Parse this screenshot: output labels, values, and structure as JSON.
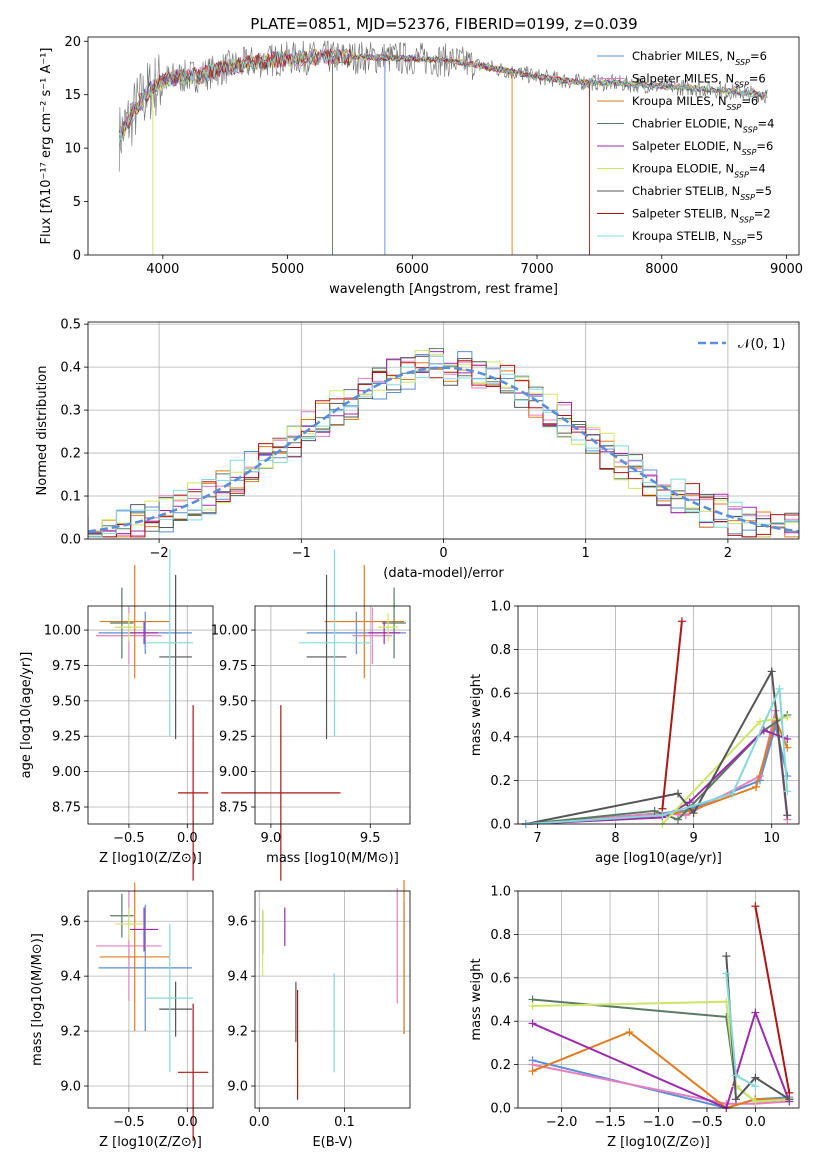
{
  "figure_title": "PLATE=0851, MJD=52376, FIBERID=0199, z=0.039",
  "models": [
    {
      "name": "Chabrier MILES",
      "nssp": "6",
      "color": "#5b8ed8"
    },
    {
      "name": "Salpeter MILES",
      "nssp": "6",
      "color": "#e67fbf"
    },
    {
      "name": "Kroupa MILES",
      "nssp": "6",
      "color": "#e07b1f"
    },
    {
      "name": "Chabrier ELODIE",
      "nssp": "4",
      "color": "#5a7a64"
    },
    {
      "name": "Salpeter ELODIE",
      "nssp": "6",
      "color": "#9b2dab"
    },
    {
      "name": "Kroupa ELODIE",
      "nssp": "4",
      "color": "#cde66a"
    },
    {
      "name": "Chabrier STELIB",
      "nssp": "5",
      "color": "#555555"
    },
    {
      "name": "Salpeter STELIB",
      "nssp": "2",
      "color": "#b01515"
    },
    {
      "name": "Kroupa STELIB",
      "nssp": "5",
      "color": "#84d9d8"
    }
  ],
  "chart_data": [
    {
      "id": "spectrum",
      "type": "line",
      "xlabel": "wavelength [Angstrom, rest frame]",
      "ylabel": "Flux [fλ10⁻¹⁷ erg cm⁻² s⁻¹ A⁻¹]",
      "xlim": [
        3400,
        9100
      ],
      "ylim": [
        0,
        20.4
      ],
      "xticks": [
        4000,
        5000,
        6000,
        7000,
        8000,
        9000
      ],
      "yticks": [
        0,
        5,
        10,
        15,
        20
      ],
      "grid": false,
      "legend": "right",
      "continuum": {
        "x": [
          3650,
          3700,
          3800,
          3900,
          4000,
          4100,
          4300,
          4500,
          4700,
          5000,
          5300,
          5600,
          6000,
          6300,
          6600,
          7000,
          7300,
          7600,
          8000,
          8400,
          8800
        ],
        "y": [
          11,
          12,
          14,
          15.5,
          16.3,
          16.6,
          16.8,
          17.5,
          18,
          18.4,
          18.5,
          18.5,
          18.4,
          18.2,
          17.6,
          16.7,
          16.2,
          16.1,
          15.8,
          15.5,
          15.0
        ]
      }
    },
    {
      "id": "residuals",
      "type": "line",
      "xlabel": "(data-model)/error",
      "ylabel": "Normed distribution",
      "xlim": [
        -2.5,
        2.5
      ],
      "ylim": [
        0,
        0.505
      ],
      "xticks": [
        -2,
        -1,
        0,
        1,
        2
      ],
      "yticks": [
        0,
        0.1,
        0.2,
        0.3,
        0.4,
        0.5
      ],
      "grid": true,
      "legend": "top-right",
      "series": [
        {
          "name": "𝒩(0, 1)",
          "mean": 0,
          "sigma": 1,
          "color": "#5b8ed8",
          "style": "dashed"
        }
      ]
    },
    {
      "id": "age_vs_Z",
      "type": "scatter",
      "xlabel": "Z [log10(Z/Z⊙)]",
      "ylabel": "age [log10(age/yr)]",
      "xlim": [
        -0.85,
        0.22
      ],
      "ylim": [
        8.63,
        10.17
      ],
      "xticks": [
        -0.5,
        0.0
      ],
      "yticks": [
        8.75,
        9.0,
        9.25,
        9.5,
        9.75,
        10.0
      ],
      "grid": true,
      "points": [
        {
          "x": -0.36,
          "xerr": 0.4,
          "y": 9.98,
          "yerr": 0.15
        },
        {
          "x": -0.5,
          "xerr": 0.28,
          "y": 9.96,
          "yerr": 0.2
        },
        {
          "x": -0.45,
          "xerr": 0.3,
          "y": 10.06,
          "yerr": 0.4
        },
        {
          "x": -0.56,
          "xerr": 0.1,
          "y": 10.05,
          "yerr": 0.25
        },
        {
          "x": -0.37,
          "xerr": 0.12,
          "y": 9.98,
          "yerr": 0.08
        },
        {
          "x": -0.5,
          "xerr": 0.12,
          "y": 10.02,
          "yerr": 0.1
        },
        {
          "x": -0.1,
          "xerr": 0.14,
          "y": 9.81,
          "yerr": 0.58
        },
        {
          "x": 0.05,
          "xerr": 0.13,
          "y": 8.85,
          "yerr": 0.62
        },
        {
          "x": -0.15,
          "xerr": 0.2,
          "y": 9.91,
          "yerr": 0.66
        }
      ]
    },
    {
      "id": "age_vs_mass",
      "type": "scatter",
      "xlabel": "mass [log10(M/M⊙)]",
      "ylabel": "",
      "xlim": [
        8.92,
        9.7
      ],
      "ylim": [
        8.63,
        10.17
      ],
      "xticks": [
        9.0,
        9.5
      ],
      "yticks": [
        8.75,
        9.0,
        9.25,
        9.5,
        9.75,
        10.0
      ],
      "grid": true,
      "points": [
        {
          "x": 9.43,
          "xerr": 0.25,
          "y": 9.98,
          "yerr": 0.15
        },
        {
          "x": 9.51,
          "xerr": 0.1,
          "y": 9.96,
          "yerr": 0.2
        },
        {
          "x": 9.47,
          "xerr": 0.2,
          "y": 10.06,
          "yerr": 0.4
        },
        {
          "x": 9.62,
          "xerr": 0.06,
          "y": 10.05,
          "yerr": 0.25
        },
        {
          "x": 9.57,
          "xerr": 0.08,
          "y": 9.98,
          "yerr": 0.08
        },
        {
          "x": 9.59,
          "xerr": 0.05,
          "y": 10.02,
          "yerr": 0.1
        },
        {
          "x": 9.28,
          "xerr": 0.1,
          "y": 9.81,
          "yerr": 0.58
        },
        {
          "x": 9.05,
          "xerr": 0.3,
          "y": 8.85,
          "yerr": 0.62
        },
        {
          "x": 9.32,
          "xerr": 0.18,
          "y": 9.91,
          "yerr": 0.66
        }
      ]
    },
    {
      "id": "weight_vs_age",
      "type": "line",
      "xlabel": "age [log10(age/yr)]",
      "ylabel": "mass weight",
      "xlim": [
        6.75,
        10.35
      ],
      "ylim": [
        0,
        1.0
      ],
      "xticks": [
        7,
        8,
        9,
        10
      ],
      "yticks": [
        0.0,
        0.2,
        0.4,
        0.6,
        0.8,
        1.0
      ],
      "grid": true,
      "series": [
        {
          "x": [
            6.85,
            8.6,
            8.9,
            9.85,
            10.05,
            10.2
          ],
          "y": [
            0,
            0.05,
            0.06,
            0.2,
            0.45,
            0.22
          ]
        },
        {
          "x": [
            6.85,
            8.6,
            8.9,
            9.85,
            10.05,
            10.2
          ],
          "y": [
            0,
            0.05,
            0.04,
            0.22,
            0.52,
            0.02
          ]
        },
        {
          "x": [
            6.85,
            8.6,
            8.95,
            9.8,
            10.05,
            10.2
          ],
          "y": [
            0,
            0.04,
            0.06,
            0.17,
            0.48,
            0.35
          ]
        },
        {
          "x": [
            6.85,
            8.5,
            8.8,
            9.9,
            10.2
          ],
          "y": [
            0,
            0.06,
            0.02,
            0.43,
            0.5
          ]
        },
        {
          "x": [
            6.85,
            8.6,
            8.95,
            9.9,
            10.2
          ],
          "y": [
            0,
            0.03,
            0.1,
            0.43,
            0.39
          ]
        },
        {
          "x": [
            8.6,
            9.85,
            10.2
          ],
          "y": [
            0,
            0.47,
            0.49
          ]
        },
        {
          "x": [
            6.85,
            8.8,
            9.0,
            10.0,
            10.2
          ],
          "y": [
            0,
            0.14,
            0.05,
            0.7,
            0.04
          ]
        },
        {
          "x": [
            8.6,
            8.85
          ],
          "y": [
            0.07,
            0.93
          ]
        },
        {
          "x": [
            6.85,
            8.6,
            9.5,
            10.1,
            10.2
          ],
          "y": [
            0,
            0.04,
            0.14,
            0.62,
            0.15
          ]
        }
      ]
    },
    {
      "id": "mass_vs_Z",
      "type": "scatter",
      "xlabel": "Z [log10(Z/Z⊙)]",
      "ylabel": "mass [log10(M/M⊙)]",
      "xlim": [
        -0.85,
        0.22
      ],
      "ylim": [
        8.92,
        9.71
      ],
      "xticks": [
        -0.5,
        0.0
      ],
      "yticks": [
        9.0,
        9.2,
        9.4,
        9.6
      ],
      "grid": true,
      "points": [
        {
          "x": -0.36,
          "xerr": 0.4,
          "y": 9.43,
          "yerr": 0.23
        },
        {
          "x": -0.5,
          "xerr": 0.28,
          "y": 9.51,
          "yerr": 0.2
        },
        {
          "x": -0.45,
          "xerr": 0.3,
          "y": 9.47,
          "yerr": 0.27
        },
        {
          "x": -0.56,
          "xerr": 0.1,
          "y": 9.62,
          "yerr": 0.08
        },
        {
          "x": -0.37,
          "xerr": 0.12,
          "y": 9.57,
          "yerr": 0.08
        },
        {
          "x": -0.5,
          "xerr": 0.12,
          "y": 9.59,
          "yerr": 0.06
        },
        {
          "x": -0.1,
          "xerr": 0.14,
          "y": 9.28,
          "yerr": 0.1
        },
        {
          "x": 0.05,
          "xerr": 0.13,
          "y": 9.05,
          "yerr": 0.25
        },
        {
          "x": -0.15,
          "xerr": 0.2,
          "y": 9.32,
          "yerr": 0.27
        }
      ]
    },
    {
      "id": "mass_vs_ebv",
      "type": "scatter",
      "xlabel": "E(B-V)",
      "ylabel": "",
      "xlim": [
        -0.005,
        0.177
      ],
      "ylim": [
        8.92,
        9.71
      ],
      "xticks": [
        0.0,
        0.1
      ],
      "yticks": [
        9.0,
        9.2,
        9.4,
        9.6
      ],
      "grid": true,
      "points": [
        {
          "x": 0.17,
          "xerr": 0,
          "y": 9.43,
          "yerr": 0.24
        },
        {
          "x": 0.162,
          "xerr": 0,
          "y": 9.51,
          "yerr": 0.21
        },
        {
          "x": 0.17,
          "xerr": 0,
          "y": 9.47,
          "yerr": 0.28
        },
        {
          "x": 0.004,
          "xerr": 0,
          "y": 9.56,
          "yerr": 0.08
        },
        {
          "x": 0.03,
          "xerr": 0,
          "y": 9.58,
          "yerr": 0.07
        },
        {
          "x": 0.004,
          "xerr": 0,
          "y": 9.52,
          "yerr": 0.12
        },
        {
          "x": 0.043,
          "xerr": 0,
          "y": 9.27,
          "yerr": 0.11
        },
        {
          "x": 0.045,
          "xerr": 0,
          "y": 9.15,
          "yerr": 0.2
        },
        {
          "x": 0.088,
          "xerr": 0,
          "y": 9.23,
          "yerr": 0.18
        }
      ]
    },
    {
      "id": "weight_vs_Z",
      "type": "line",
      "xlabel": "Z [log10(Z/Z⊙)]",
      "ylabel": "mass weight",
      "xlim": [
        -2.45,
        0.45
      ],
      "ylim": [
        0,
        1.0
      ],
      "xticks": [
        -2.0,
        -1.5,
        -1.0,
        -0.5,
        0.0
      ],
      "yticks": [
        0.0,
        0.2,
        0.4,
        0.6,
        0.8,
        1.0
      ],
      "grid": true,
      "series": [
        {
          "x": [
            -2.3,
            -0.3,
            0.0,
            0.35
          ],
          "y": [
            0.22,
            0.0,
            0.04,
            0.05
          ]
        },
        {
          "x": [
            -2.3,
            -0.3,
            0.0,
            0.35
          ],
          "y": [
            0.2,
            0.02,
            0.02,
            0.03
          ]
        },
        {
          "x": [
            -2.3,
            -1.3,
            -0.3,
            0.0,
            0.35
          ],
          "y": [
            0.17,
            0.35,
            0.0,
            0.04,
            0.04
          ]
        },
        {
          "x": [
            -2.3,
            -0.3,
            -0.2,
            0.0,
            0.35
          ],
          "y": [
            0.5,
            0.42,
            0.1,
            0.03,
            0.04
          ]
        },
        {
          "x": [
            -2.3,
            -0.3,
            0.0,
            0.35
          ],
          "y": [
            0.39,
            0.0,
            0.44,
            0.03
          ]
        },
        {
          "x": [
            -2.3,
            -0.3,
            -0.2,
            0.0,
            0.35
          ],
          "y": [
            0.47,
            0.49,
            0.1,
            0.03,
            0.04
          ]
        },
        {
          "x": [
            -0.3,
            -0.2,
            0.0,
            0.35
          ],
          "y": [
            0.7,
            0.04,
            0.14,
            0.04
          ]
        },
        {
          "x": [
            0.0,
            0.35
          ],
          "y": [
            0.93,
            0.07
          ]
        },
        {
          "x": [
            -0.3,
            -0.2,
            0.0
          ],
          "y": [
            0.62,
            0.15,
            0.1
          ]
        }
      ]
    }
  ]
}
